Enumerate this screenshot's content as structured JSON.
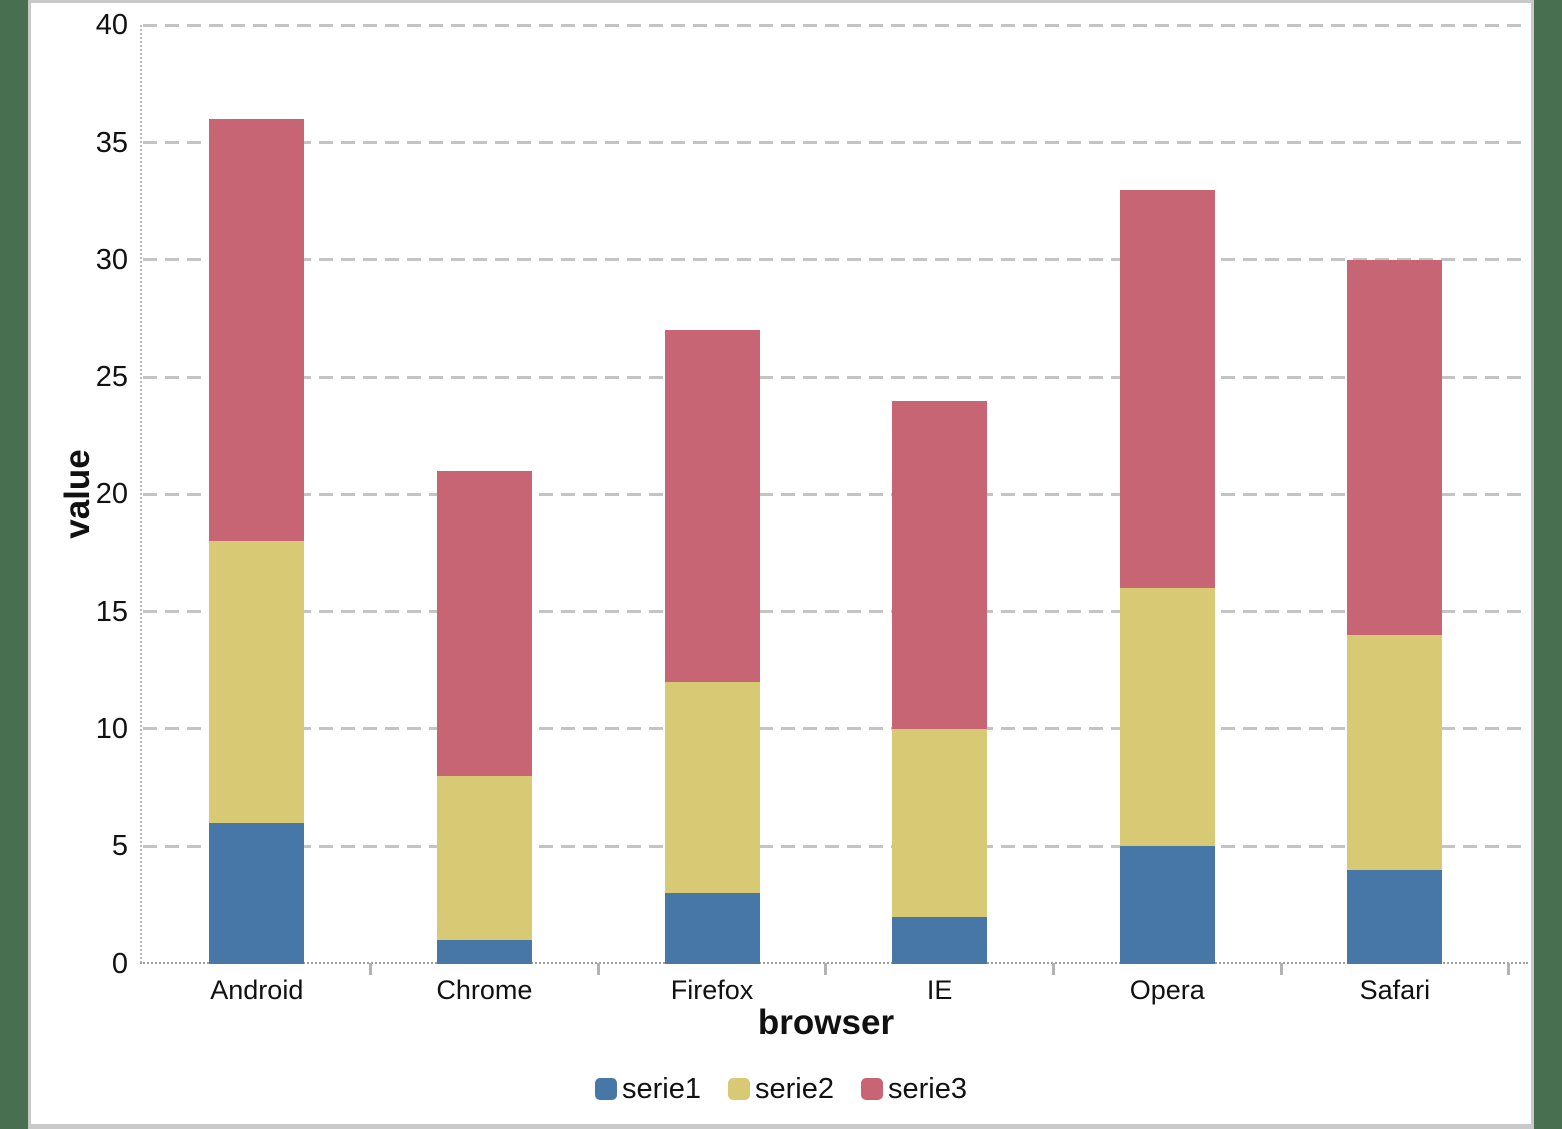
{
  "window": {
    "frame_color": "#487050",
    "panel_color": "#ffffff",
    "panel_border_color": "#c9c9c9"
  },
  "chart_data": {
    "type": "bar",
    "stacked": true,
    "title": "",
    "categories": [
      "Android",
      "Chrome",
      "Firefox",
      "IE",
      "Opera",
      "Safari"
    ],
    "series": [
      {
        "name": "serie1",
        "color": "#4777a7",
        "values": [
          6,
          1,
          3,
          2,
          5,
          4
        ]
      },
      {
        "name": "serie2",
        "color": "#d8c975",
        "values": [
          12,
          7,
          9,
          8,
          11,
          10
        ]
      },
      {
        "name": "serie3",
        "color": "#c86575",
        "values": [
          18,
          13,
          15,
          14,
          17,
          16
        ]
      }
    ],
    "stack_totals": [
      36,
      21,
      27,
      24,
      33,
      30
    ],
    "xlabel": "browser",
    "ylabel": "value",
    "ylim": [
      0,
      40
    ],
    "yticks": [
      0,
      5,
      10,
      15,
      20,
      25,
      30,
      35,
      40
    ],
    "grid": "horizontal-dashed",
    "gridline_color": "#c4c4c4",
    "axis_line_color": "#9f9f9f",
    "text_color": "#111111",
    "legend_position": "bottom",
    "legend_labels": [
      "serie1",
      "serie2",
      "serie3"
    ]
  }
}
